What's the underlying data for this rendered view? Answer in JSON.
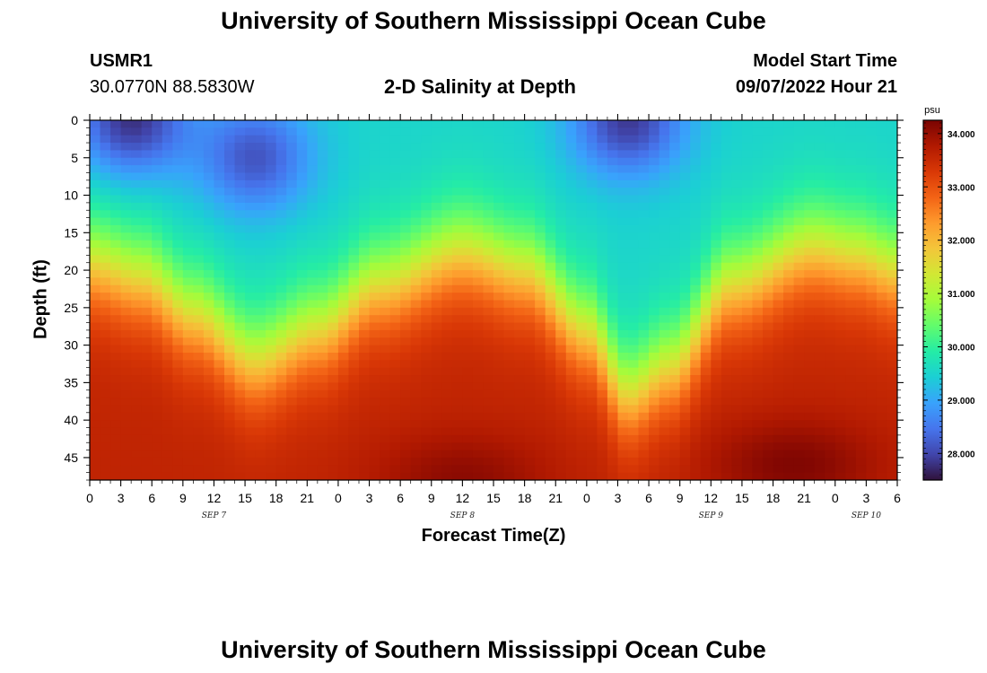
{
  "page": {
    "title_top": "University of Southern Mississippi Ocean Cube",
    "title_bottom": "University of Southern Mississippi Ocean Cube",
    "station_id": "USMR1",
    "coordinates": "30.0770N  88.5830W",
    "plot_title": "2-D Salinity at Depth",
    "model_label": "Model Start Time",
    "model_start": "09/07/2022 Hour 21"
  },
  "chart_data": {
    "type": "heatmap",
    "title": "2-D Salinity at Depth",
    "xlabel": "Forecast Time(Z)",
    "ylabel": "Depth (ft)",
    "x_ticks": [
      "0",
      "3",
      "6",
      "9",
      "12",
      "15",
      "18",
      "21",
      "0",
      "3",
      "6",
      "9",
      "12",
      "15",
      "18",
      "21",
      "0",
      "3",
      "6",
      "9",
      "12",
      "15",
      "18",
      "21",
      "0",
      "3",
      "6"
    ],
    "x_range_hours": [
      0,
      78
    ],
    "date_labels": [
      {
        "label": "SEP 7",
        "hour": 12
      },
      {
        "label": "SEP 8",
        "hour": 36
      },
      {
        "label": "SEP 9",
        "hour": 60
      },
      {
        "label": "SEP 10",
        "hour": 75
      }
    ],
    "y_ticks": [
      "0",
      "5",
      "10",
      "15",
      "20",
      "25",
      "30",
      "35",
      "40",
      "45"
    ],
    "y_range_ft": [
      0,
      48
    ],
    "colorbar": {
      "unit": "psu",
      "range": [
        27.5,
        34.25
      ],
      "ticks": [
        "34.000",
        "33.000",
        "32.000",
        "31.000",
        "30.000",
        "29.000",
        "28.000"
      ]
    },
    "halocline_depth_ft": [
      {
        "hour": 0,
        "depth": 19
      },
      {
        "hour": 5,
        "depth": 21
      },
      {
        "hour": 10,
        "depth": 26
      },
      {
        "hour": 16,
        "depth": 32
      },
      {
        "hour": 22,
        "depth": 28
      },
      {
        "hour": 28,
        "depth": 22
      },
      {
        "hour": 36,
        "depth": 17.5
      },
      {
        "hour": 42,
        "depth": 20
      },
      {
        "hour": 48,
        "depth": 28
      },
      {
        "hour": 52,
        "depth": 36.5
      },
      {
        "hour": 56,
        "depth": 33
      },
      {
        "hour": 62,
        "depth": 22
      },
      {
        "hour": 70,
        "depth": 17
      },
      {
        "hour": 74,
        "depth": 18
      },
      {
        "hour": 78,
        "depth": 20
      }
    ],
    "fresh_cores": [
      {
        "hour": 4,
        "depth": 0,
        "salinity": 27.6
      },
      {
        "hour": 16,
        "depth": 5,
        "salinity": 28.0
      },
      {
        "hour": 52,
        "depth": 0,
        "salinity": 27.7
      }
    ],
    "salty_cores": [
      {
        "hour": 36,
        "depth": 48,
        "salinity": 34.1
      },
      {
        "hour": 68,
        "depth": 46,
        "salinity": 34.2
      }
    ]
  },
  "colors": {
    "stops": [
      "#30123b",
      "#4145ab",
      "#4675ed",
      "#39a2fc",
      "#1bcfd4",
      "#24eca6",
      "#61fc6c",
      "#a4fc3b",
      "#d1e834",
      "#f3c63a",
      "#fe9b2d",
      "#f36315",
      "#d93806",
      "#b11901",
      "#7a0402"
    ]
  }
}
